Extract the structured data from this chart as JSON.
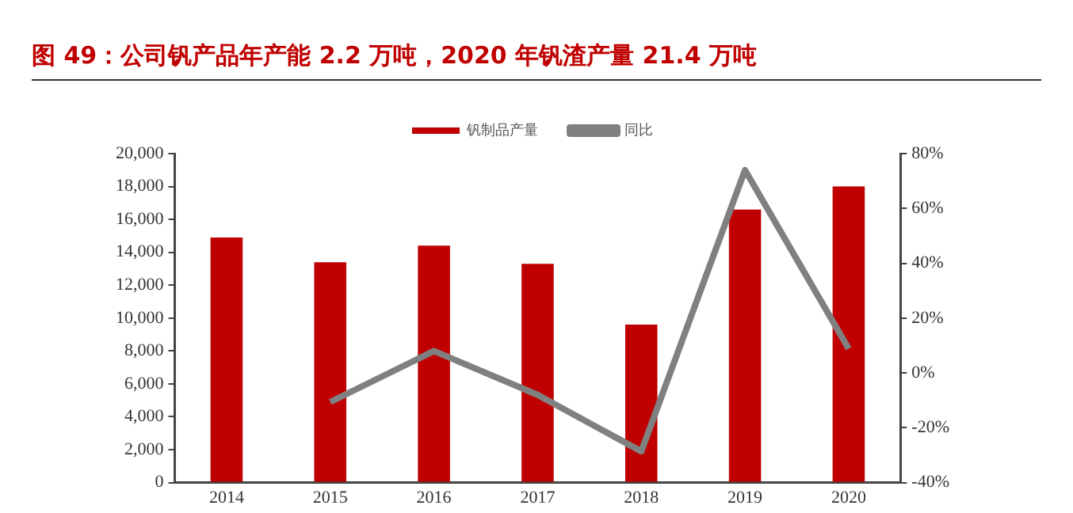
{
  "chart_data": {
    "type": "bar",
    "title": "图 49：公司钒产品年产能 2.2 万吨，2020 年钒渣产量 21.4 万吨",
    "categories": [
      "2014",
      "2015",
      "2016",
      "2017",
      "2018",
      "2019",
      "2020"
    ],
    "series": [
      {
        "name": "钒制品产量",
        "color": "#c00000",
        "values": [
          14900,
          13400,
          14400,
          13300,
          9600,
          16600,
          18000
        ]
      },
      {
        "name": "同比",
        "type": "line",
        "axis": "y2",
        "color": "#808080",
        "values": [
          null,
          -10.6,
          8,
          -8,
          -28.6,
          74,
          8.8
        ]
      }
    ],
    "ylim": [
      0,
      20000
    ],
    "yticks": [
      0,
      {
        "value": 2000,
        "label": "2,000"
      },
      {
        "value": 4000,
        "label": "4,000"
      },
      {
        "value": 6000,
        "label": "6,000"
      },
      {
        "value": 8000,
        "label": "8,000"
      },
      {
        "value": 10000,
        "label": "10,000"
      },
      {
        "value": 12000,
        "label": "12,000"
      },
      {
        "value": 14000,
        "label": "14,000"
      },
      {
        "value": 16000,
        "label": "16,000"
      },
      {
        "value": 18000,
        "label": "18,000"
      },
      {
        "value": 20000,
        "label": "20,000"
      }
    ],
    "y2lim": [
      -40,
      80
    ],
    "y2ticks": [
      {
        "value": -40,
        "label": "-40%"
      },
      {
        "value": -20,
        "label": "-20%"
      },
      {
        "value": 0,
        "label": "0%"
      },
      {
        "value": 20,
        "label": "20%"
      },
      {
        "value": 40,
        "label": "40%"
      },
      {
        "value": 60,
        "label": "60%"
      },
      {
        "value": 80,
        "label": "80%"
      }
    ],
    "grid": false,
    "legend": "top",
    "marker": "none",
    "line_style": "solid"
  }
}
